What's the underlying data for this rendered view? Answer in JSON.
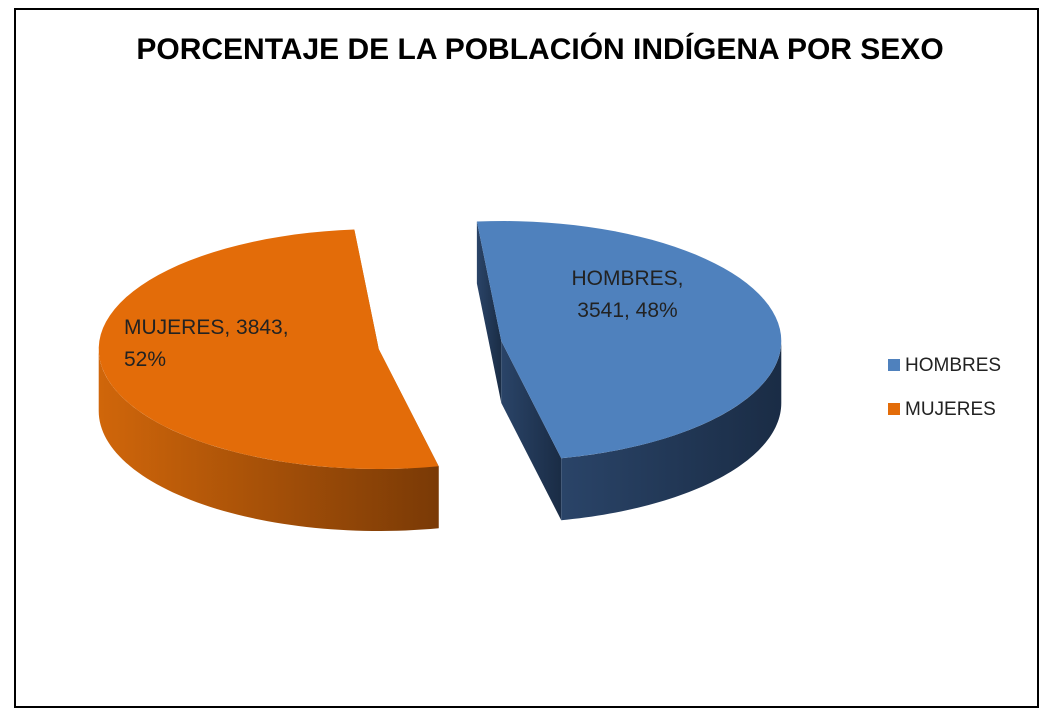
{
  "chart_data": {
    "type": "pie",
    "title": "PORCENTAJE DE LA POBLACIÓN INDÍGENA POR SEXO",
    "categories": [
      "HOMBRES",
      "MUJERES"
    ],
    "values": [
      3541,
      3843
    ],
    "value_labels": [
      "HOMBRES, 3541, 48%",
      "MUJERES, 3843, 52%"
    ],
    "colors": [
      "#4f81bd",
      "#e36c09"
    ],
    "legend": "right"
  }
}
